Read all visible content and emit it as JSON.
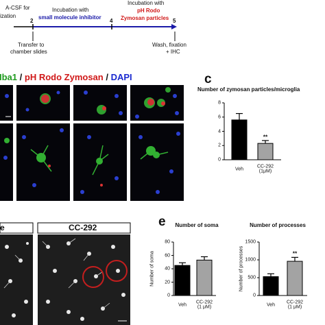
{
  "timeline": {
    "pre_lines": [
      "A-CSF for",
      "ization"
    ],
    "marks": [
      "2",
      "4",
      "5"
    ],
    "step1_lines": [
      "Incubation with",
      "small molecule inhibitor"
    ],
    "step2_lines": [
      "Incubation with",
      "pH Rodo",
      "Zymosan particles"
    ],
    "transfer_lines": [
      "Transfer to",
      "chamber slides"
    ],
    "wash_lines": [
      "Wash, fixation",
      "+ IHC"
    ]
  },
  "stain_legend": {
    "items": [
      "Iba1",
      "pH Rodo Zymosan",
      "DAPI"
    ],
    "separator": "/"
  },
  "panel_letters": [
    "c",
    "e"
  ],
  "image_labels": [
    "e",
    "CC-292"
  ],
  "chart_data": [
    {
      "type": "bar",
      "title": "Number of zymosan particles/microglia",
      "categories": [
        "Veh",
        "CC-292\n(1μM)"
      ],
      "values": [
        5.6,
        2.3
      ],
      "errors": [
        0.9,
        0.4
      ],
      "colors": [
        "#000000",
        "#a3a3a3"
      ],
      "significance": [
        null,
        "**"
      ],
      "ylim": [
        0,
        8
      ],
      "yticks": [
        0,
        2,
        4,
        6,
        8
      ]
    },
    {
      "type": "bar",
      "title": "Number of soma",
      "ylabel": "Number of soma",
      "categories": [
        "Veh",
        "CC-292\n(1 μM)"
      ],
      "values": [
        45,
        53
      ],
      "errors": [
        4,
        5
      ],
      "colors": [
        "#000000",
        "#a3a3a3"
      ],
      "significance": [
        null,
        null
      ],
      "ylim": [
        0,
        80
      ],
      "yticks": [
        0,
        20,
        40,
        60,
        80
      ]
    },
    {
      "type": "bar",
      "title": "Number of processes",
      "ylabel": "Number of processes",
      "categories": [
        "Veh",
        "CC-292\n(1 μM)"
      ],
      "values": [
        530,
        960
      ],
      "errors": [
        80,
        110
      ],
      "colors": [
        "#000000",
        "#a3a3a3"
      ],
      "significance": [
        null,
        "**"
      ],
      "ylim": [
        0,
        1500
      ],
      "yticks": [
        0,
        500,
        1000,
        1500
      ]
    }
  ]
}
